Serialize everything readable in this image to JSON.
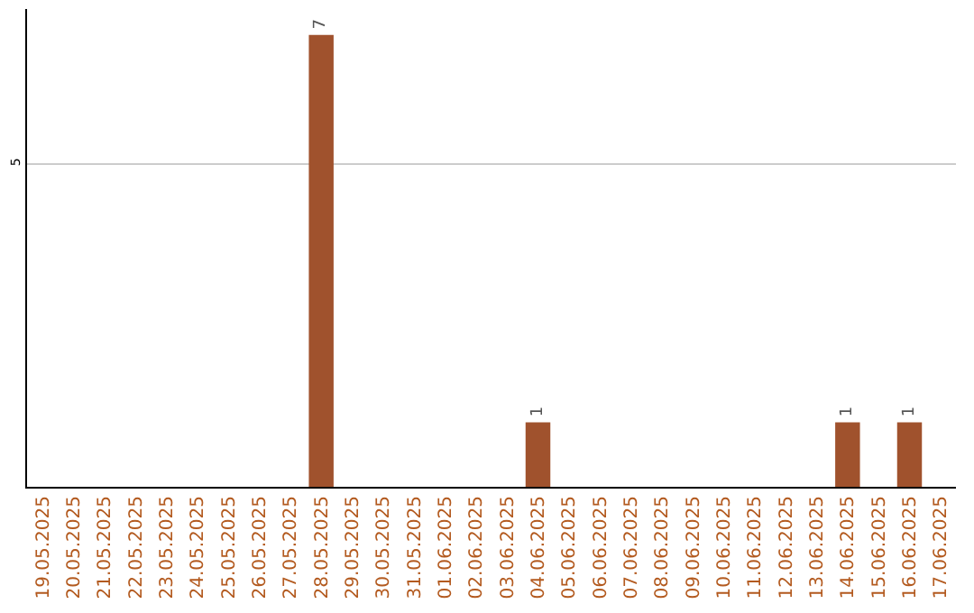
{
  "chart_data": {
    "type": "bar",
    "categories": [
      "19.05.2025",
      "20.05.2025",
      "21.05.2025",
      "22.05.2025",
      "23.05.2025",
      "24.05.2025",
      "25.05.2025",
      "26.05.2025",
      "27.05.2025",
      "28.05.2025",
      "29.05.2025",
      "30.05.2025",
      "31.05.2025",
      "01.06.2025",
      "02.06.2025",
      "03.06.2025",
      "04.06.2025",
      "05.06.2025",
      "06.06.2025",
      "07.06.2025",
      "08.06.2025",
      "09.06.2025",
      "10.06.2025",
      "11.06.2025",
      "12.06.2025",
      "13.06.2025",
      "14.06.2025",
      "15.06.2025",
      "16.06.2025",
      "17.06.2025"
    ],
    "values": [
      0,
      0,
      0,
      0,
      0,
      0,
      0,
      0,
      0,
      7,
      0,
      0,
      0,
      0,
      0,
      0,
      1,
      0,
      0,
      0,
      0,
      0,
      0,
      0,
      0,
      0,
      1,
      0,
      1,
      0
    ],
    "value_labels": [
      null,
      null,
      null,
      null,
      null,
      null,
      null,
      null,
      null,
      "7",
      null,
      null,
      null,
      null,
      null,
      null,
      "1",
      null,
      null,
      null,
      null,
      null,
      null,
      null,
      null,
      null,
      "1",
      null,
      "1",
      null
    ],
    "color": "#a0522d",
    "ylim": [
      0,
      7.4
    ],
    "yticks": [
      5
    ],
    "grid": "y"
  }
}
